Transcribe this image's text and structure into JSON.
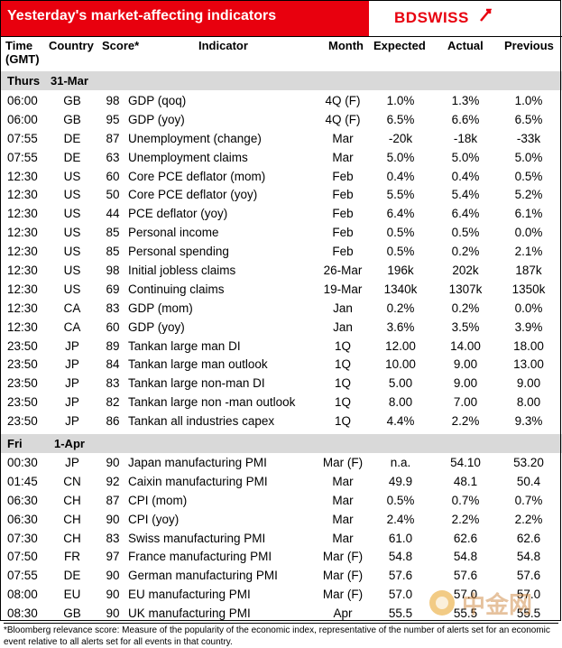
{
  "header": {
    "title": "Yesterday's market-affecting indicators",
    "logo_left": "BD",
    "logo_right": "SWISS"
  },
  "columns": {
    "time": "Time (GMT)",
    "country": "Country",
    "score": "Score*",
    "indicator": "Indicator",
    "month": "Month",
    "expected": "Expected",
    "actual": "Actual",
    "previous": "Previous"
  },
  "day1": {
    "label": "Thurs",
    "date": "31-Mar"
  },
  "rows1": [
    {
      "time": "06:00",
      "country": "GB",
      "score": "98",
      "indicator": "GDP (qoq)",
      "month": "4Q (F)",
      "expected": "1.0%",
      "actual": "1.3%",
      "previous": "1.0%"
    },
    {
      "time": "06:00",
      "country": "GB",
      "score": "95",
      "indicator": "GDP (yoy)",
      "month": "4Q (F)",
      "expected": "6.5%",
      "actual": "6.6%",
      "previous": "6.5%"
    },
    {
      "time": "07:55",
      "country": "DE",
      "score": "87",
      "indicator": "Unemployment (change)",
      "month": "Mar",
      "expected": "-20k",
      "actual": "-18k",
      "previous": "-33k"
    },
    {
      "time": "07:55",
      "country": "DE",
      "score": "63",
      "indicator": "Unemployment claims",
      "month": "Mar",
      "expected": "5.0%",
      "actual": "5.0%",
      "previous": "5.0%"
    },
    {
      "time": "12:30",
      "country": "US",
      "score": "60",
      "indicator": "Core PCE deflator (mom)",
      "month": "Feb",
      "expected": "0.4%",
      "actual": "0.4%",
      "previous": "0.5%"
    },
    {
      "time": "12:30",
      "country": "US",
      "score": "50",
      "indicator": "Core PCE deflator (yoy)",
      "month": "Feb",
      "expected": "5.5%",
      "actual": "5.4%",
      "previous": "5.2%"
    },
    {
      "time": "12:30",
      "country": "US",
      "score": "44",
      "indicator": "PCE deflator (yoy)",
      "month": "Feb",
      "expected": "6.4%",
      "actual": "6.4%",
      "previous": "6.1%"
    },
    {
      "time": "12:30",
      "country": "US",
      "score": "85",
      "indicator": "Personal income",
      "month": "Feb",
      "expected": "0.5%",
      "actual": "0.5%",
      "previous": "0.0%"
    },
    {
      "time": "12:30",
      "country": "US",
      "score": "85",
      "indicator": "Personal spending",
      "month": "Feb",
      "expected": "0.5%",
      "actual": "0.2%",
      "previous": "2.1%"
    },
    {
      "time": "12:30",
      "country": "US",
      "score": "98",
      "indicator": "Initial jobless claims",
      "month": "26-Mar",
      "expected": "196k",
      "actual": "202k",
      "previous": "187k"
    },
    {
      "time": "12:30",
      "country": "US",
      "score": "69",
      "indicator": "Continuing claims",
      "month": "19-Mar",
      "expected": "1340k",
      "actual": "1307k",
      "previous": "1350k"
    },
    {
      "time": "12:30",
      "country": "CA",
      "score": "83",
      "indicator": "GDP (mom)",
      "month": "Jan",
      "expected": "0.2%",
      "actual": "0.2%",
      "previous": "0.0%"
    },
    {
      "time": "12:30",
      "country": "CA",
      "score": "60",
      "indicator": "GDP (yoy)",
      "month": "Jan",
      "expected": "3.6%",
      "actual": "3.5%",
      "previous": "3.9%"
    },
    {
      "time": "23:50",
      "country": "JP",
      "score": "89",
      "indicator": "Tankan large man DI",
      "month": "1Q",
      "expected": "12.00",
      "actual": "14.00",
      "previous": "18.00"
    },
    {
      "time": "23:50",
      "country": "JP",
      "score": "84",
      "indicator": "Tankan large man outlook",
      "month": "1Q",
      "expected": "10.00",
      "actual": "9.00",
      "previous": "13.00"
    },
    {
      "time": "23:50",
      "country": "JP",
      "score": "83",
      "indicator": "Tankan large non-man DI",
      "month": "1Q",
      "expected": "5.00",
      "actual": "9.00",
      "previous": "9.00"
    },
    {
      "time": "23:50",
      "country": "JP",
      "score": "82",
      "indicator": "Tankan large non -man outlook",
      "month": "1Q",
      "expected": "8.00",
      "actual": "7.00",
      "previous": "8.00"
    },
    {
      "time": "23:50",
      "country": "JP",
      "score": "86",
      "indicator": "Tankan all industries capex",
      "month": "1Q",
      "expected": "4.4%",
      "actual": "2.2%",
      "previous": "9.3%"
    }
  ],
  "day2": {
    "label": "Fri",
    "date": "1-Apr"
  },
  "rows2": [
    {
      "time": "00:30",
      "country": "JP",
      "score": "90",
      "indicator": "Japan manufacturing PMI",
      "month": "Mar (F)",
      "expected": "n.a.",
      "actual": "54.10",
      "previous": "53.20"
    },
    {
      "time": "01:45",
      "country": "CN",
      "score": "92",
      "indicator": "Caixin manufacturing PMI",
      "month": "Mar",
      "expected": "49.9",
      "actual": "48.1",
      "previous": "50.4"
    },
    {
      "time": "06:30",
      "country": "CH",
      "score": "87",
      "indicator": "CPI (mom)",
      "month": "Mar",
      "expected": "0.5%",
      "actual": "0.7%",
      "previous": "0.7%"
    },
    {
      "time": "06:30",
      "country": "CH",
      "score": "90",
      "indicator": "CPI (yoy)",
      "month": "Mar",
      "expected": "2.4%",
      "actual": "2.2%",
      "previous": "2.2%"
    },
    {
      "time": "07:30",
      "country": "CH",
      "score": "83",
      "indicator": "Swiss manufacturing PMI",
      "month": "Mar",
      "expected": "61.0",
      "actual": "62.6",
      "previous": "62.6"
    },
    {
      "time": "07:50",
      "country": "FR",
      "score": "97",
      "indicator": "France manufacturing PMI",
      "month": "Mar (F)",
      "expected": "54.8",
      "actual": "54.8",
      "previous": "54.8"
    },
    {
      "time": "07:55",
      "country": "DE",
      "score": "90",
      "indicator": "German manufacturing PMI",
      "month": "Mar (F)",
      "expected": "57.6",
      "actual": "57.6",
      "previous": "57.6"
    },
    {
      "time": "08:00",
      "country": "EU",
      "score": "90",
      "indicator": "EU manufacturing PMI",
      "month": "Mar (F)",
      "expected": "57.0",
      "actual": "57.0",
      "previous": "57.0"
    },
    {
      "time": "08:30",
      "country": "GB",
      "score": "90",
      "indicator": "UK manufacturing PMI",
      "month": "Apr",
      "expected": "55.5",
      "actual": "55.5",
      "previous": "55.5"
    }
  ],
  "footer": "*Bloomberg relevance score: Measure of the popularity of the economic index, representative of the number of alerts set for an economic event relative to all alerts set for all events in that country.",
  "watermark_text": "中金网",
  "colors": {
    "brand": "#e8000e",
    "day_band": "#d9d9d9"
  }
}
